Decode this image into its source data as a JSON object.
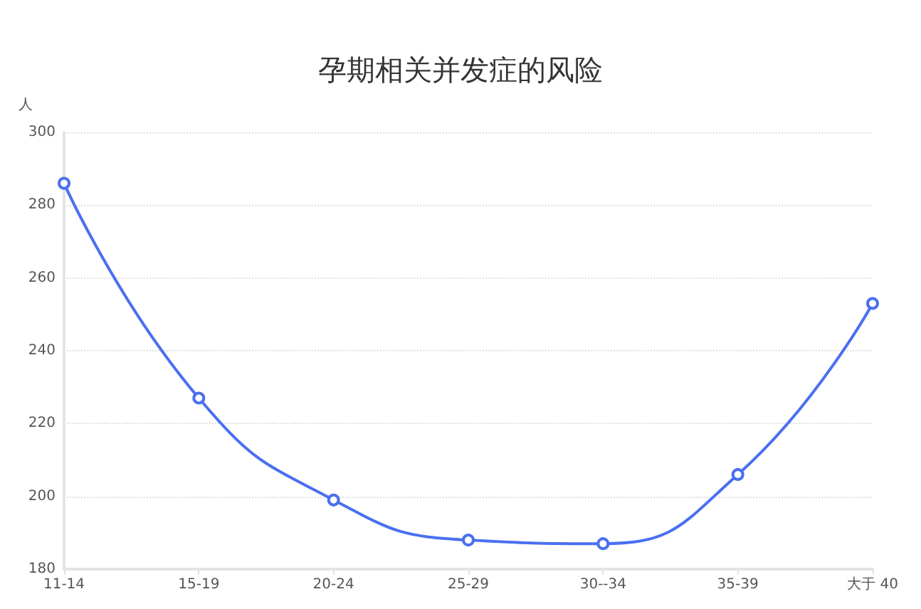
{
  "chart_data": {
    "type": "line",
    "title": "孕期相关并发症的风险",
    "ylabel": "人",
    "categories": [
      "11-14",
      "15-19",
      "20-24",
      "25-29",
      "30--34",
      "35-39",
      "大于 40"
    ],
    "values": [
      286,
      227,
      199,
      188,
      187,
      206,
      253
    ],
    "color": "#4a6ff0",
    "ylim": [
      180,
      300
    ],
    "yticks": [
      180,
      200,
      220,
      240,
      260,
      280,
      300
    ],
    "grid": "y",
    "marker": "circle",
    "line_style": "solid"
  }
}
